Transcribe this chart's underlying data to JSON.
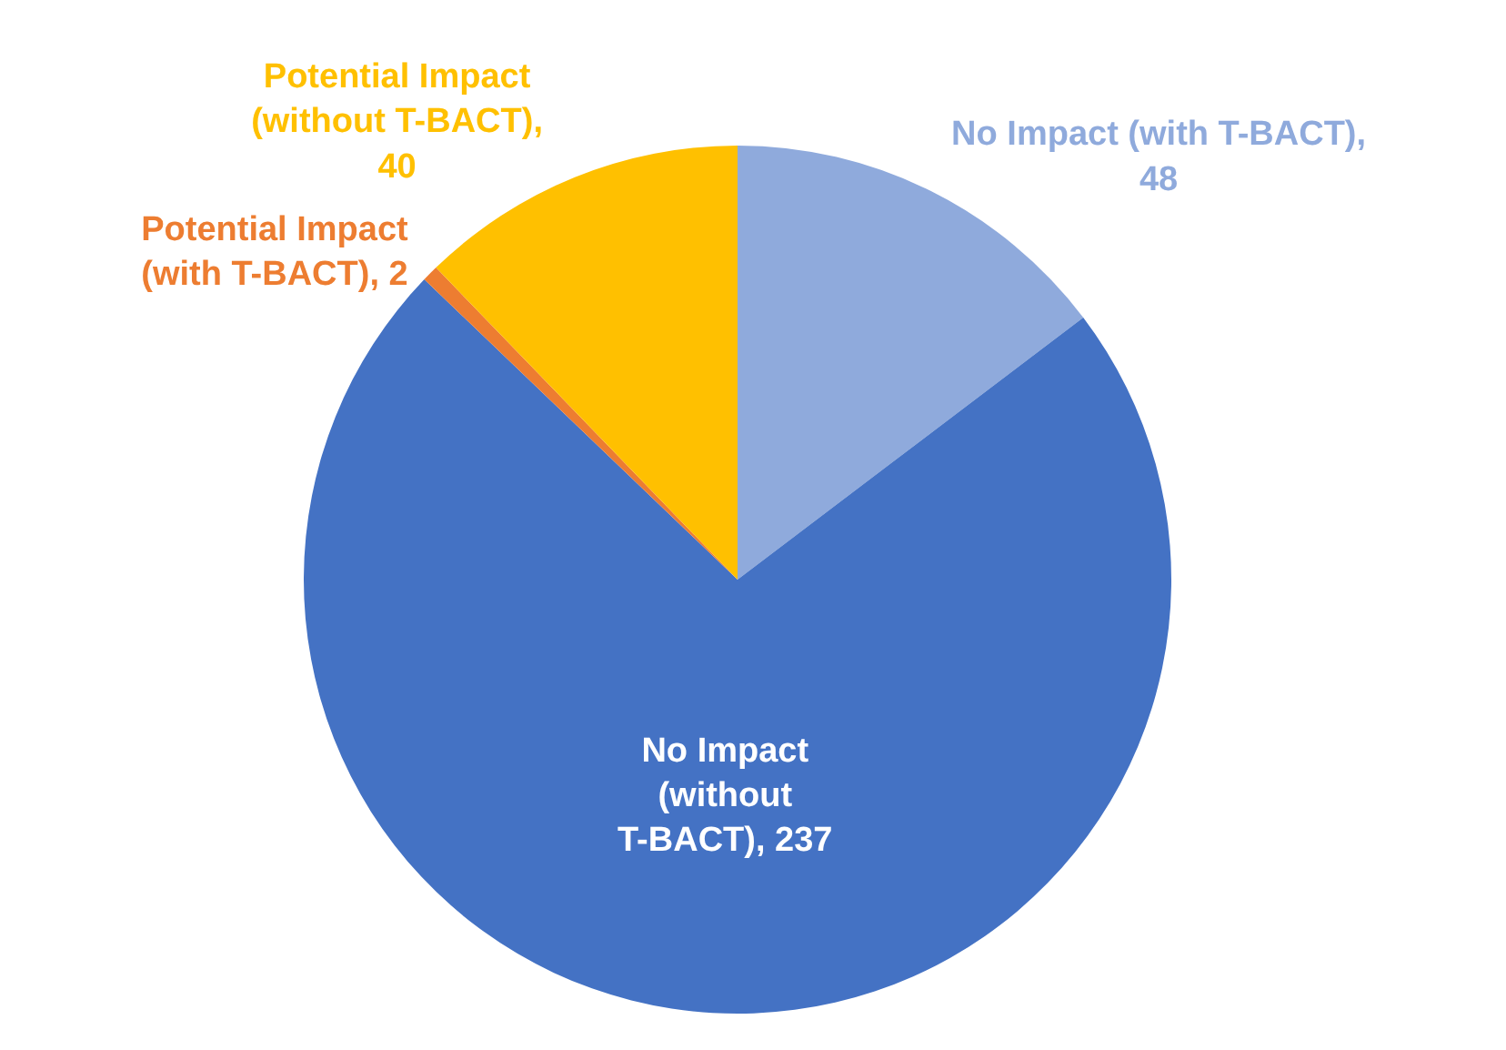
{
  "chart_data": {
    "type": "pie",
    "categories": [
      "No Impact (with T-BACT), 48",
      "No Impact (without T-BACT), 237",
      "Potential Impact (with T-BACT), 2",
      "Potential Impact (without T-BACT), 40"
    ],
    "values": [
      48,
      237,
      2,
      40
    ],
    "colors": [
      "#8faadc",
      "#4472c4",
      "#ed7d31",
      "#ffc000"
    ],
    "legend": false
  }
}
